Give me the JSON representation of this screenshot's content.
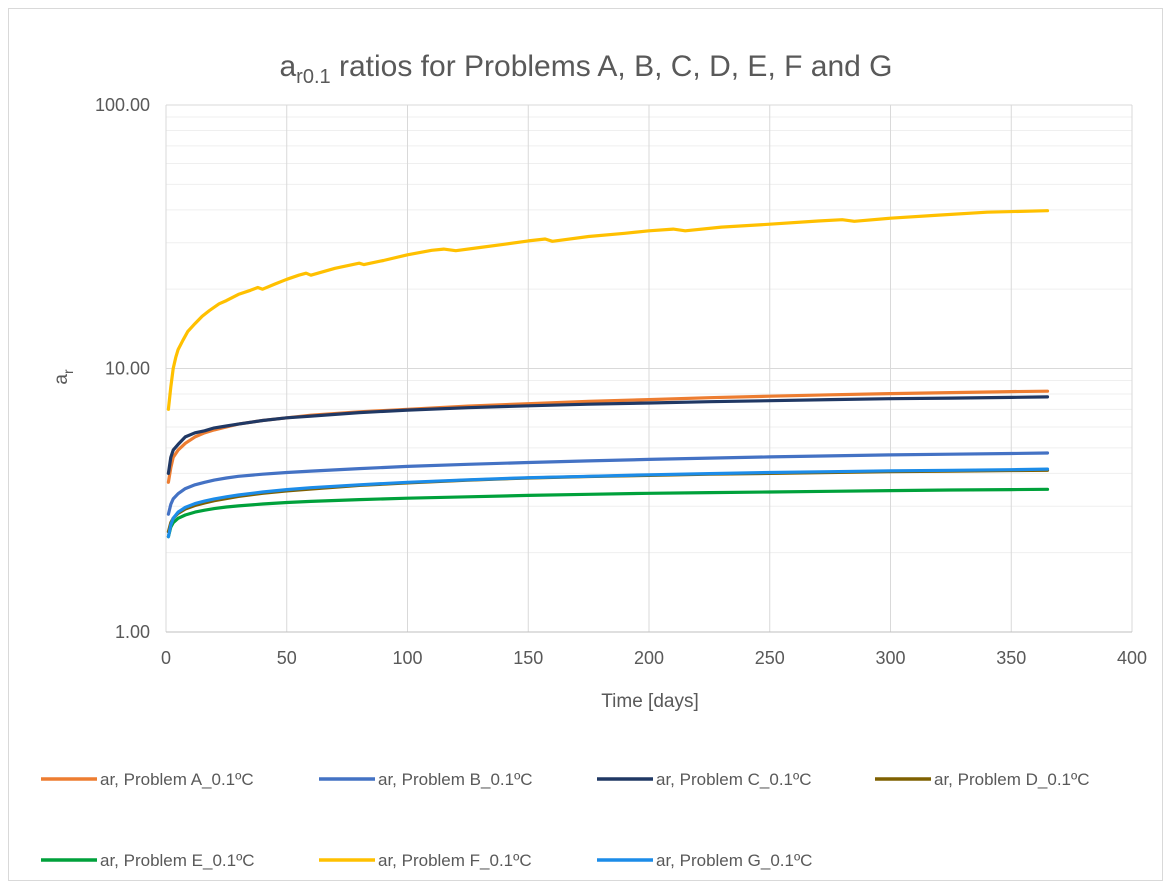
{
  "chart_data": {
    "type": "line",
    "title_main": "a",
    "title_sub": "r0.1",
    "title_rest": " ratios for Problems A, B, C, D, E, F and G",
    "xlabel": "Time [days]",
    "ylabel_main": "a",
    "ylabel_sub": "r",
    "xlim": [
      0,
      400
    ],
    "ylim": [
      1,
      100
    ],
    "yscale": "log",
    "xticks": [
      "0",
      "50",
      "100",
      "150",
      "200",
      "250",
      "300",
      "350",
      "400"
    ],
    "yticks": [
      "1.00",
      "10.00",
      "100.00"
    ],
    "grid": true,
    "legend_position": "bottom",
    "series": [
      {
        "name": "ar, Problem A_0.1ºC",
        "color": "#ED7D31",
        "x": [
          1,
          2,
          3,
          5,
          8,
          12,
          16,
          20,
          25,
          30,
          40,
          50,
          60,
          80,
          100,
          125,
          150,
          175,
          200,
          225,
          250,
          275,
          300,
          325,
          350,
          365
        ],
        "y": [
          3.7,
          4.2,
          4.6,
          4.9,
          5.2,
          5.5,
          5.7,
          5.85,
          6.0,
          6.15,
          6.35,
          6.5,
          6.65,
          6.85,
          7.0,
          7.2,
          7.35,
          7.5,
          7.62,
          7.75,
          7.85,
          7.95,
          8.03,
          8.1,
          8.17,
          8.2
        ]
      },
      {
        "name": "ar, Problem B_0.1ºC",
        "color": "#4472C4",
        "x": [
          1,
          2,
          3,
          5,
          8,
          12,
          16,
          20,
          25,
          30,
          40,
          50,
          60,
          80,
          100,
          125,
          150,
          175,
          200,
          225,
          250,
          275,
          300,
          325,
          350,
          365
        ],
        "y": [
          2.8,
          3.05,
          3.2,
          3.35,
          3.5,
          3.62,
          3.7,
          3.77,
          3.84,
          3.9,
          3.97,
          4.03,
          4.08,
          4.17,
          4.25,
          4.33,
          4.4,
          4.46,
          4.52,
          4.57,
          4.62,
          4.66,
          4.7,
          4.73,
          4.76,
          4.78
        ]
      },
      {
        "name": "ar, Problem C_0.1ºC",
        "color": "#203864",
        "x": [
          1,
          2,
          3,
          5,
          8,
          12,
          16,
          20,
          25,
          30,
          40,
          50,
          60,
          80,
          100,
          125,
          150,
          175,
          200,
          225,
          250,
          275,
          300,
          325,
          350,
          365
        ],
        "y": [
          4.0,
          4.6,
          4.9,
          5.15,
          5.5,
          5.7,
          5.8,
          5.95,
          6.05,
          6.15,
          6.35,
          6.5,
          6.6,
          6.8,
          6.95,
          7.1,
          7.22,
          7.32,
          7.4,
          7.48,
          7.55,
          7.62,
          7.68,
          7.72,
          7.77,
          7.8
        ]
      },
      {
        "name": "ar, Problem D_0.1ºC",
        "color": "#7F6000",
        "x": [
          1,
          2,
          3,
          5,
          8,
          12,
          16,
          20,
          25,
          30,
          40,
          50,
          60,
          80,
          100,
          125,
          150,
          175,
          200,
          225,
          250,
          275,
          300,
          325,
          350,
          365
        ],
        "y": [
          2.4,
          2.6,
          2.7,
          2.82,
          2.93,
          3.02,
          3.09,
          3.15,
          3.21,
          3.27,
          3.36,
          3.43,
          3.49,
          3.6,
          3.68,
          3.77,
          3.84,
          3.89,
          3.93,
          3.97,
          4.0,
          4.03,
          4.06,
          4.08,
          4.1,
          4.11
        ]
      },
      {
        "name": "ar, Problem E_0.1ºC",
        "color": "#00A13B",
        "x": [
          1,
          2,
          3,
          5,
          8,
          12,
          16,
          20,
          25,
          30,
          40,
          50,
          60,
          80,
          100,
          125,
          150,
          175,
          200,
          225,
          250,
          275,
          300,
          325,
          350,
          365
        ],
        "y": [
          2.3,
          2.5,
          2.6,
          2.7,
          2.78,
          2.85,
          2.9,
          2.94,
          2.98,
          3.01,
          3.06,
          3.1,
          3.13,
          3.18,
          3.22,
          3.26,
          3.3,
          3.33,
          3.36,
          3.38,
          3.4,
          3.42,
          3.44,
          3.46,
          3.47,
          3.48
        ]
      },
      {
        "name": "ar, Problem F_0.1ºC",
        "color": "#FFC000",
        "x": [
          1,
          2,
          3,
          4,
          5,
          7,
          9,
          12,
          15,
          18,
          22,
          25,
          30,
          35,
          38,
          40,
          45,
          50,
          55,
          58,
          60,
          70,
          80,
          82,
          90,
          100,
          110,
          115,
          120,
          130,
          140,
          150,
          157,
          160,
          175,
          190,
          200,
          210,
          215,
          230,
          250,
          270,
          280,
          285,
          300,
          320,
          340,
          365
        ],
        "y": [
          7.0,
          8.5,
          10.0,
          11.0,
          11.8,
          12.8,
          13.8,
          14.8,
          15.8,
          16.6,
          17.6,
          18.1,
          19.1,
          19.8,
          20.3,
          20.0,
          20.9,
          21.8,
          22.6,
          23.0,
          22.6,
          24.0,
          25.1,
          24.8,
          25.7,
          27.0,
          28.1,
          28.4,
          28.0,
          28.8,
          29.6,
          30.5,
          31.0,
          30.4,
          31.7,
          32.6,
          33.3,
          33.8,
          33.3,
          34.4,
          35.3,
          36.3,
          36.7,
          36.2,
          37.2,
          38.2,
          39.2,
          39.7
        ]
      },
      {
        "name": "ar, Problem G_0.1ºC",
        "color": "#1C8CE8",
        "x": [
          1,
          2,
          3,
          5,
          8,
          12,
          16,
          20,
          25,
          30,
          40,
          50,
          60,
          80,
          100,
          125,
          150,
          175,
          200,
          225,
          250,
          275,
          300,
          325,
          350,
          365
        ],
        "y": [
          2.3,
          2.55,
          2.7,
          2.85,
          2.97,
          3.07,
          3.14,
          3.2,
          3.26,
          3.31,
          3.4,
          3.47,
          3.53,
          3.62,
          3.7,
          3.78,
          3.85,
          3.9,
          3.95,
          3.99,
          4.03,
          4.06,
          4.09,
          4.11,
          4.13,
          4.15
        ]
      }
    ]
  }
}
